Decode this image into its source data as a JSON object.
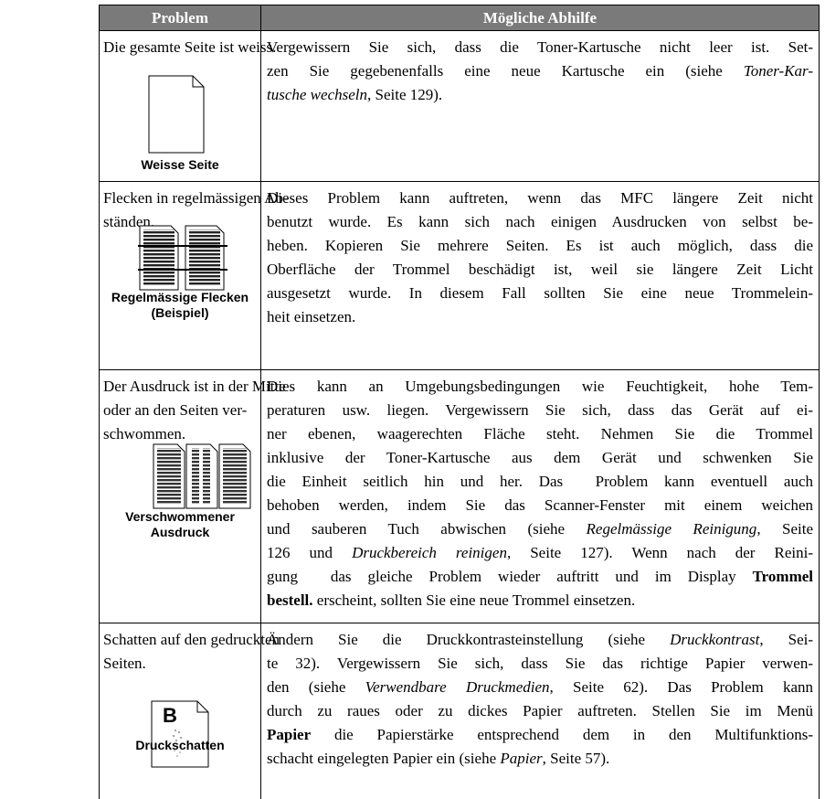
{
  "table": {
    "header": [
      "Problem",
      "Mögliche Abhilfe"
    ],
    "rows": [
      {
        "problem": [
          "Die gesamte Seite ist weiss."
        ],
        "caption": [
          "Weisse Seite"
        ],
        "remedy": [
          [
            {
              "text": "Vergewissern Sie sich, dass die Toner-Kartusche nicht leer ist. Set-"
            }
          ],
          [
            {
              "text": "zen Sie gegebenenfalls eine neue Kartusche ein (siehe "
            },
            {
              "text": "Toner-Kar-",
              "italic": true
            }
          ],
          [
            {
              "text": "tusche wechseln",
              "italic": true
            },
            {
              "text": ", Seite 129)."
            }
          ]
        ]
      },
      {
        "problem": [
          "Flecken in regelmässigen Ab-",
          "ständen."
        ],
        "caption": [
          "Regelmässige Flecken",
          "(Beispiel)"
        ],
        "remedy": [
          [
            {
              "text": "Dieses Problem kann auftreten, wenn das MFC längere Zeit nicht"
            }
          ],
          [
            {
              "text": "benutzt wurde. Es kann sich nach einigen Ausdrucken von selbst be-"
            }
          ],
          [
            {
              "text": "heben. Kopieren Sie mehrere Seiten. Es ist auch möglich, dass die"
            }
          ],
          [
            {
              "text": "Oberfläche der Trommel beschädigt ist, weil sie längere Zeit Licht"
            }
          ],
          [
            {
              "text": "ausgesetzt wurde. In diesem Fall sollten Sie eine neue Trommelein-"
            }
          ],
          [
            {
              "text": "heit einsetzen."
            }
          ]
        ]
      },
      {
        "problem": [
          "Der Ausdruck ist in der Mitte",
          "oder an den Seiten ver-",
          "schwommen."
        ],
        "caption": [
          "Verschwommener Ausdruck"
        ],
        "remedy": [
          [
            {
              "text": "Dies kann an Umgebungsbedingungen wie Feuchtigkeit, hohe Tem-"
            }
          ],
          [
            {
              "text": "peraturen usw. liegen. Vergewissern Sie sich, dass das Gerät auf ei-"
            }
          ],
          [
            {
              "text": "ner ebenen, waagerechten Fläche steht. Nehmen Sie die Trommel"
            }
          ],
          [
            {
              "text": "inklusive der Toner-Kartusche aus dem Gerät und schwenken Sie"
            }
          ],
          [
            {
              "text": "die Einheit seitlich hin und her. Das  Problem kann eventuell auch"
            }
          ],
          [
            {
              "text": "behoben werden, indem Sie das Scanner-Fenster mit einem weichen"
            }
          ],
          [
            {
              "text": "und sauberen Tuch abwischen (siehe "
            },
            {
              "text": "Regelmässige Reinigung",
              "italic": true
            },
            {
              "text": ", Seite"
            }
          ],
          [
            {
              "text": "126 und "
            },
            {
              "text": "Druckbereich reinigen",
              "italic": true
            },
            {
              "text": ", Seite 127). Wenn nach der Reini-"
            }
          ],
          [
            {
              "text": "gung  das gleiche Problem wieder auftritt und im Display "
            },
            {
              "text": "Trommel",
              "bold": true
            }
          ],
          [
            {
              "text": "bestell.",
              "bold": true
            },
            {
              "text": " erscheint, sollten Sie eine neue Trommel einsetzen."
            }
          ]
        ]
      },
      {
        "problem": [
          "Schatten auf den gedruckten",
          "Seiten."
        ],
        "icon_text": "B",
        "caption": [
          "Druckschatten"
        ],
        "remedy": [
          [
            {
              "text": "Ändern Sie die Druckkontrasteinstellung (siehe "
            },
            {
              "text": "Druckkontrast",
              "italic": true
            },
            {
              "text": ", Sei-"
            }
          ],
          [
            {
              "text": "te 32). Vergewissern Sie sich, dass Sie das richtige Papier verwen-"
            }
          ],
          [
            {
              "text": "den (siehe "
            },
            {
              "text": "Verwendbare Druckmedien",
              "italic": true
            },
            {
              "text": ", Seite 62). Das Problem kann"
            }
          ],
          [
            {
              "text": "durch zu raues oder zu dickes Papier auftreten. Stellen Sie im Menü"
            }
          ],
          [
            {
              "text": "Papier",
              "bold": true
            },
            {
              "text": " die Papierstärke entsprechend dem in den Multifunktions-"
            }
          ],
          [
            {
              "text": "schacht eingelegten Papier ein (siehe "
            },
            {
              "text": "Papier",
              "italic": true
            },
            {
              "text": ", Seite 57)."
            }
          ]
        ]
      }
    ]
  }
}
